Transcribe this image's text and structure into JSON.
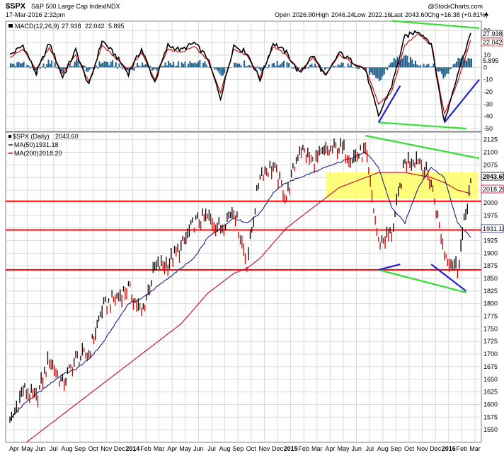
{
  "header": {
    "symbol": "$SPX",
    "name": "S&P 500 Large Cap Index",
    "exchange": "INDX",
    "date": "17-Mar-2016 2:32pm",
    "watermark": "@StockCharts.com",
    "open_label": "Open",
    "open": "2026.90",
    "high_label": "High",
    "high": "2046.24",
    "low_label": "Low",
    "low": "2022.16",
    "last_label": "Last",
    "last": "2043.60",
    "chg_label": "Chg",
    "chg": "+16.38 (+0.81%)"
  },
  "macd_legend": {
    "label": "MACD(12,26,9)",
    "macd": "27.938",
    "signal": "22.042",
    "hist": "5.895",
    "colors": {
      "macd": "#000000",
      "signal": "#cc0000",
      "hist": "#1f5f8b"
    }
  },
  "price_legend": {
    "label": "$SPX (Daily)",
    "value": "2043.60",
    "ma50_label": "MA(50)",
    "ma50": "1931.18",
    "ma200_label": "MA(200)",
    "ma200": "2018.20",
    "colors": {
      "price": "#000000",
      "ma50": "#1a237e",
      "ma200": "#cc0033",
      "down_bar": "#cc0000"
    }
  },
  "chart_data": [
    {
      "type": "line",
      "panel": "MACD",
      "ylim": [
        -50,
        40
      ],
      "yticks": [
        "30",
        "20",
        "10",
        "0",
        "-10",
        "-20",
        "-30",
        "-40",
        "-50"
      ],
      "x_months": [
        "Apr",
        "May",
        "Jun",
        "Jul",
        "Aug",
        "Sep",
        "Oct",
        "Nov",
        "Dec",
        "2014",
        "Feb",
        "Mar",
        "Apr",
        "May",
        "Jun",
        "Jul",
        "Aug",
        "Sep",
        "Oct",
        "Nov",
        "Dec",
        "2015",
        "Feb",
        "Mar",
        "Apr",
        "May",
        "Jun",
        "Jul",
        "Aug",
        "Sep",
        "Oct",
        "Nov",
        "Dec",
        "2016",
        "Feb",
        "Mar"
      ],
      "macd_by_month": [
        10,
        18,
        -5,
        20,
        -8,
        14,
        -15,
        22,
        10,
        -5,
        15,
        -12,
        18,
        14,
        20,
        8,
        -25,
        18,
        12,
        -10,
        20,
        12,
        -5,
        10,
        -8,
        12,
        5,
        -2,
        -40,
        -15,
        25,
        30,
        20,
        -45,
        -5,
        28
      ],
      "signal_by_month": [
        8,
        15,
        -2,
        16,
        -5,
        10,
        -12,
        18,
        8,
        -2,
        12,
        -10,
        15,
        12,
        17,
        6,
        -20,
        15,
        10,
        -8,
        17,
        10,
        -3,
        8,
        -6,
        10,
        4,
        -1,
        -30,
        -20,
        18,
        28,
        18,
        -38,
        -12,
        22
      ],
      "last_values": {
        "macd": 27.938,
        "signal": 22.042,
        "hist": 5.895
      },
      "annotations": [
        {
          "kind": "trendline",
          "color": "#33dd33",
          "points": [
            [
              "Sep 2015",
              38
            ],
            [
              "Mar 2016",
              32
            ]
          ]
        },
        {
          "kind": "trendline",
          "color": "#33dd33",
          "points": [
            [
              "Aug 2015",
              -45
            ],
            [
              "Feb 2016",
              -50
            ]
          ]
        },
        {
          "kind": "trendline",
          "color": "#2222cc",
          "points": [
            [
              "Aug 2015",
              -45
            ],
            [
              "Sep 2015",
              -15
            ]
          ]
        },
        {
          "kind": "trendline",
          "color": "#2222cc",
          "points": [
            [
              "Jan 2016",
              -45
            ],
            [
              "Mar 2016",
              -10
            ]
          ]
        }
      ]
    },
    {
      "type": "line",
      "panel": "Price",
      "ylim": [
        1525,
        2140
      ],
      "yticks": [
        "2125",
        "2100",
        "2075",
        "2050",
        "2025",
        "2000",
        "1975",
        "1950",
        "1925",
        "1900",
        "1875",
        "1850",
        "1825",
        "1800",
        "1775",
        "1750",
        "1725",
        "1700",
        "1675",
        "1650",
        "1625",
        "1600",
        "1575",
        "1550"
      ],
      "x_months": [
        "Apr",
        "May",
        "Jun",
        "Jul",
        "Aug",
        "Sep",
        "Oct",
        "Nov",
        "Dec",
        "2014",
        "Feb",
        "Mar",
        "Apr",
        "May",
        "Jun",
        "Jul",
        "Aug",
        "Sep",
        "Oct",
        "Nov",
        "Dec",
        "2015",
        "Feb",
        "Mar",
        "Apr",
        "May",
        "Jun",
        "Jul",
        "Aug",
        "Sep",
        "Oct",
        "Nov",
        "Dec",
        "2016",
        "Feb",
        "Mar"
      ],
      "close_by_month": [
        1560,
        1630,
        1610,
        1690,
        1640,
        1690,
        1700,
        1790,
        1810,
        1830,
        1780,
        1870,
        1880,
        1910,
        1960,
        1970,
        1950,
        1990,
        1880,
        2060,
        2070,
        2010,
        2110,
        2080,
        2100,
        2110,
        2090,
        2100,
        1920,
        1940,
        2080,
        2090,
        2040,
        1900,
        1870,
        2043.6
      ],
      "ma50_by_month": [
        1570,
        1600,
        1620,
        1640,
        1660,
        1670,
        1690,
        1720,
        1760,
        1800,
        1810,
        1830,
        1850,
        1870,
        1890,
        1930,
        1950,
        1970,
        1960,
        1980,
        2020,
        2040,
        2050,
        2060,
        2070,
        2080,
        2090,
        2100,
        2070,
        1990,
        1960,
        2030,
        2070,
        2050,
        1960,
        1931.18
      ],
      "ma200_by_month": [
        1500,
        1520,
        1540,
        1560,
        1580,
        1600,
        1620,
        1640,
        1660,
        1680,
        1700,
        1720,
        1740,
        1760,
        1790,
        1820,
        1840,
        1860,
        1870,
        1890,
        1920,
        1950,
        1970,
        1990,
        2010,
        2030,
        2040,
        2050,
        2060,
        2060,
        2060,
        2055,
        2050,
        2040,
        2025,
        2018.2
      ],
      "annotations": [
        {
          "kind": "horizontal",
          "color": "#ff0000",
          "y": 2003
        },
        {
          "kind": "horizontal",
          "color": "#ff0000",
          "y": 1946
        },
        {
          "kind": "horizontal",
          "color": "#ff0000",
          "y": 1867
        },
        {
          "kind": "band",
          "color": "#ffff66",
          "y1": 2008,
          "y2": 2060,
          "from": "Apr 2015",
          "to": "Mar 2016"
        },
        {
          "kind": "trendline",
          "color": "#33dd33",
          "points": [
            [
              "Jul 2015",
              2133
            ],
            [
              "Mar 2016",
              2088
            ]
          ]
        },
        {
          "kind": "trendline",
          "color": "#33dd33",
          "points": [
            [
              "Aug 2015",
              1867
            ],
            [
              "Feb 2016",
              1822
            ]
          ]
        },
        {
          "kind": "trendline",
          "color": "#2222cc",
          "points": [
            [
              "Aug 2015",
              1867
            ],
            [
              "Sep 2015",
              1878
            ]
          ]
        },
        {
          "kind": "trendline",
          "color": "#2222cc",
          "points": [
            [
              "Dec 2015",
              1878
            ],
            [
              "Feb 2016",
              1825
            ]
          ]
        }
      ]
    }
  ]
}
